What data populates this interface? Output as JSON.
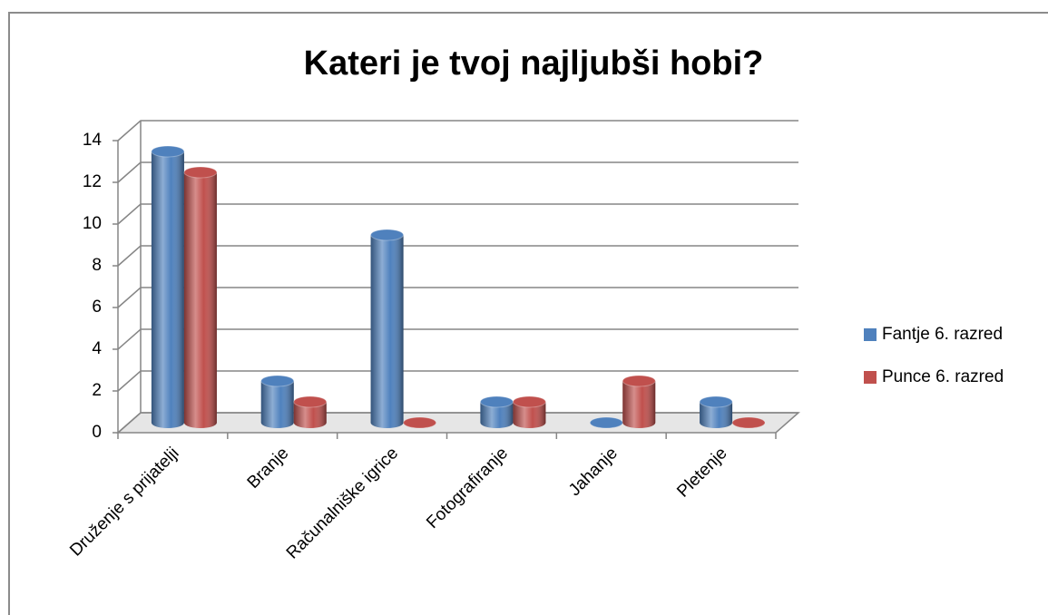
{
  "chart_data": {
    "type": "bar3d",
    "title": "Kateri je tvoj najljubši hobi?",
    "categories": [
      "Druženje s prijatelji",
      "Branje",
      "Računalniške igrice",
      "Fotografiranje",
      "Jahanje",
      "Pletenje"
    ],
    "series": [
      {
        "name": "Fantje 6. razred",
        "color": "#4f81bd",
        "values": [
          13,
          2,
          9,
          1,
          0,
          1
        ]
      },
      {
        "name": "Punce 6. razred",
        "color": "#c0504d",
        "values": [
          12,
          1,
          0,
          1,
          2,
          0
        ]
      }
    ],
    "ylim": [
      0,
      14
    ],
    "yticks": [
      0,
      2,
      4,
      6,
      8,
      10,
      12,
      14
    ],
    "grid": true,
    "legend": "right"
  }
}
